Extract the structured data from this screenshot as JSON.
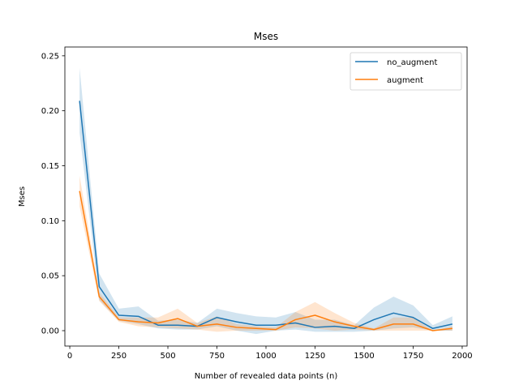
{
  "chart_data": {
    "type": "line",
    "title": "Mses",
    "xlabel": "Number of revealed data points (n)",
    "ylabel": "Mses",
    "xlim": [
      -25,
      2025
    ],
    "ylim": [
      -0.014,
      0.258
    ],
    "xticks": [
      0,
      250,
      500,
      750,
      1000,
      1250,
      1500,
      1750,
      2000
    ],
    "yticks": [
      0.0,
      0.05,
      0.1,
      0.15,
      0.2,
      0.25
    ],
    "xtick_labels": [
      "0",
      "250",
      "500",
      "750",
      "1000",
      "1250",
      "1500",
      "1750",
      "2000"
    ],
    "ytick_labels": [
      "0.00",
      "0.05",
      "0.10",
      "0.15",
      "0.20",
      "0.25"
    ],
    "grid": false,
    "legend_position": "top-right",
    "x": [
      50,
      150,
      250,
      350,
      450,
      550,
      650,
      750,
      850,
      950,
      1050,
      1150,
      1250,
      1350,
      1450,
      1550,
      1650,
      1750,
      1850,
      1950
    ],
    "series": [
      {
        "name": "no_augment",
        "color": "#1f77b4",
        "band_color": "#1f77b4",
        "values": [
          0.209,
          0.04,
          0.014,
          0.013,
          0.005,
          0.005,
          0.004,
          0.012,
          0.008,
          0.005,
          0.005,
          0.007,
          0.003,
          0.004,
          0.002,
          0.01,
          0.016,
          0.012,
          0.002,
          0.006
        ],
        "lower": [
          0.18,
          0.028,
          0.009,
          0.006,
          0.002,
          0.001,
          0.001,
          0.004,
          0.0,
          -0.003,
          0.0,
          0.001,
          -0.001,
          -0.001,
          -0.001,
          0.0,
          0.002,
          0.003,
          0.0,
          0.0
        ],
        "upper": [
          0.239,
          0.052,
          0.02,
          0.022,
          0.009,
          0.01,
          0.007,
          0.02,
          0.016,
          0.013,
          0.012,
          0.017,
          0.01,
          0.01,
          0.005,
          0.021,
          0.031,
          0.023,
          0.005,
          0.013
        ]
      },
      {
        "name": "augment",
        "color": "#ff7f0e",
        "band_color": "#ff7f0e",
        "values": [
          0.127,
          0.031,
          0.01,
          0.008,
          0.007,
          0.011,
          0.004,
          0.006,
          0.003,
          0.002,
          0.001,
          0.01,
          0.014,
          0.008,
          0.004,
          0.001,
          0.006,
          0.006,
          0.0,
          0.002
        ],
        "lower": [
          0.113,
          0.027,
          0.008,
          0.004,
          0.003,
          0.002,
          0.001,
          -0.001,
          0.0,
          0.0,
          0.0,
          0.003,
          0.002,
          0.0,
          0.001,
          0.0,
          0.0,
          0.0,
          0.0,
          0.0
        ],
        "upper": [
          0.141,
          0.035,
          0.012,
          0.012,
          0.012,
          0.02,
          0.007,
          0.013,
          0.006,
          0.004,
          0.003,
          0.017,
          0.026,
          0.016,
          0.007,
          0.002,
          0.012,
          0.012,
          0.0,
          0.004
        ]
      }
    ]
  }
}
